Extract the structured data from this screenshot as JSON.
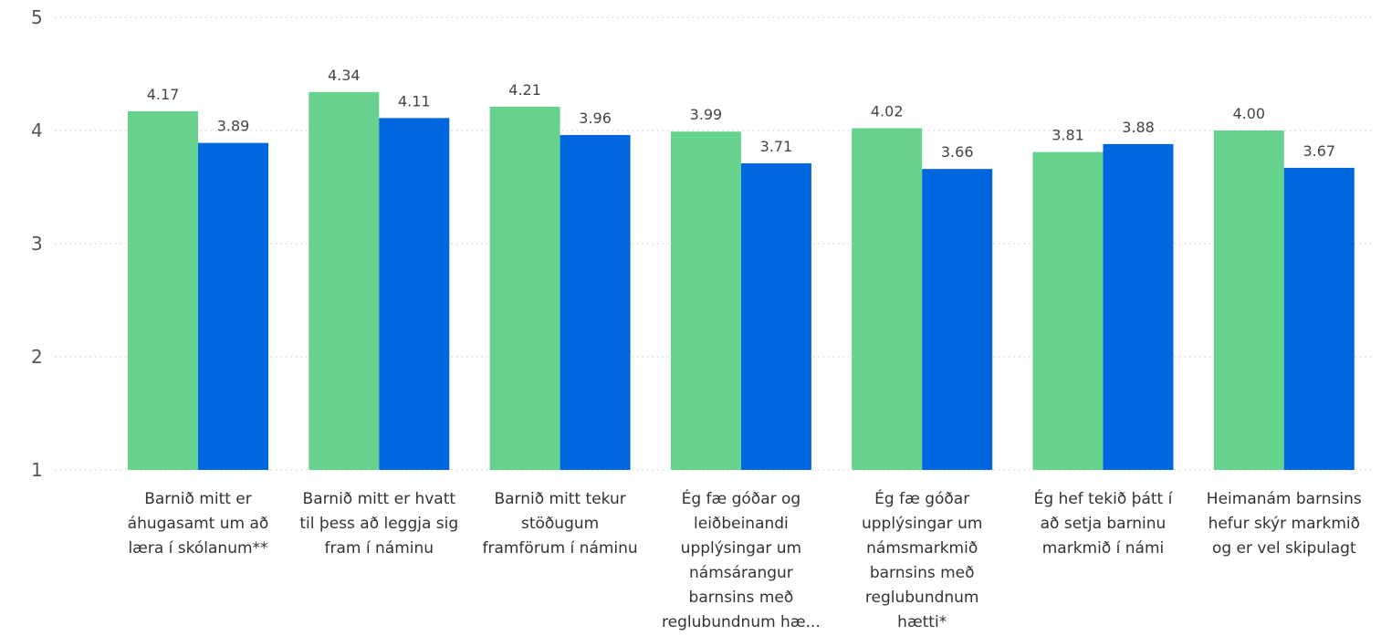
{
  "chart_data": {
    "type": "bar",
    "categories": [
      [
        "Barnið mitt er",
        "áhugasamt um að",
        "læra í skólanum**"
      ],
      [
        "Barnið mitt er hvatt",
        "til þess að leggja sig",
        "fram í náminu"
      ],
      [
        "Barnið mitt tekur",
        "stöðugum",
        "framförum í náminu"
      ],
      [
        "Ég fæ góðar og",
        "leiðbeinandi",
        "upplýsingar um",
        "námsárangur",
        "barnsins með",
        "reglubundnum hæ..."
      ],
      [
        "Ég fæ góðar",
        "upplýsingar um",
        "námsmarkmið",
        "barnsins með",
        "reglubundnum",
        "hætti*"
      ],
      [
        "Ég hef tekið þátt í",
        "að setja barninu",
        "markmið í námi"
      ],
      [
        "Heimanám barnsins",
        "hefur skýr markmið",
        "og er vel skipulagt"
      ]
    ],
    "series": [
      {
        "values": [
          4.17,
          4.34,
          4.21,
          3.99,
          4.02,
          3.81,
          4.0
        ],
        "labels": [
          "4.17",
          "4.34",
          "4.21",
          "3.99",
          "4.02",
          "3.81",
          "4.00"
        ]
      },
      {
        "values": [
          3.89,
          4.11,
          3.96,
          3.71,
          3.66,
          3.88,
          3.67
        ],
        "labels": [
          "3.89",
          "4.11",
          "3.96",
          "3.71",
          "3.66",
          "3.88",
          "3.67"
        ]
      }
    ],
    "colors": [
      "#66d28e",
      "#0066e0"
    ],
    "yticks": [
      "1",
      "2",
      "3",
      "4",
      "5"
    ],
    "ylim": [
      1,
      5
    ],
    "grid": true,
    "title": "",
    "xlabel": "",
    "ylabel": ""
  }
}
